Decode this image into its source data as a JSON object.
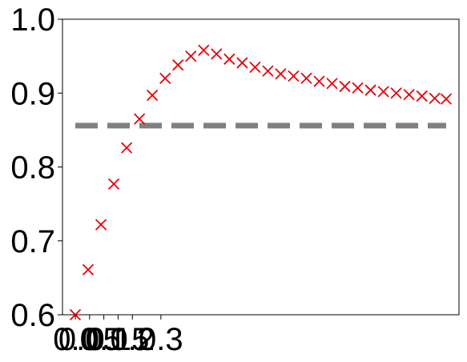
{
  "chart_data": {
    "type": "scatter",
    "title": "",
    "xlabel": "",
    "ylabel": "",
    "ylim": [
      0.6,
      1.0
    ],
    "xlim": [
      -0.045,
      1.345
    ],
    "grid": false,
    "legend": "none",
    "y_ticks": [
      {
        "value": 0.6,
        "label": "0.6"
      },
      {
        "value": 0.7,
        "label": "0.7"
      },
      {
        "value": 0.8,
        "label": "0.8"
      },
      {
        "value": 0.9,
        "label": "0.9"
      },
      {
        "value": 1.0,
        "label": "1.0"
      }
    ],
    "x_ticks": [
      {
        "value": 0.0,
        "label": "0.0"
      },
      {
        "value": 0.05,
        "label": "0.05"
      },
      {
        "value": 0.1,
        "label": "0.1"
      },
      {
        "value": 0.15,
        "label": "0.15"
      },
      {
        "value": 0.2,
        "label": "0.2"
      },
      {
        "value": 0.3,
        "label": "0.3"
      }
    ],
    "series": [
      {
        "marker": "x",
        "color": "#e8000b",
        "x": [
          0.0,
          0.045,
          0.09,
          0.135,
          0.18,
          0.225,
          0.27,
          0.315,
          0.36,
          0.405,
          0.45,
          0.495,
          0.54,
          0.585,
          0.63,
          0.675,
          0.72,
          0.765,
          0.81,
          0.855,
          0.9,
          0.945,
          0.99,
          1.035,
          1.08,
          1.125,
          1.17,
          1.215,
          1.26,
          1.3
        ],
        "y": [
          0.6,
          0.661,
          0.722,
          0.777,
          0.826,
          0.865,
          0.897,
          0.92,
          0.938,
          0.95,
          0.958,
          0.953,
          0.946,
          0.941,
          0.935,
          0.93,
          0.926,
          0.923,
          0.92,
          0.916,
          0.913,
          0.909,
          0.907,
          0.904,
          0.902,
          0.9,
          0.898,
          0.896,
          0.893,
          0.892
        ]
      }
    ],
    "reference_line": {
      "y": 0.856,
      "x_range": [
        0.0,
        1.3
      ],
      "style": "dashed",
      "color": "#808080"
    }
  }
}
